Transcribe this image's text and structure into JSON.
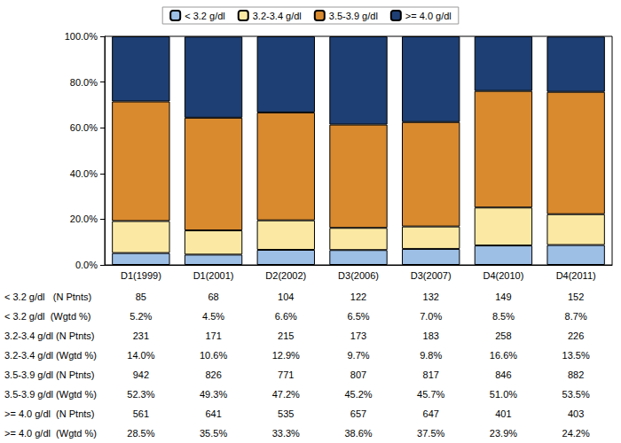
{
  "chart_data": {
    "type": "bar",
    "stacked": true,
    "grid": false,
    "legend": "top",
    "categories": [
      "D1(1999)",
      "D1(2001)",
      "D2(2002)",
      "D3(2006)",
      "D3(2007)",
      "D4(2010)",
      "D4(2011)"
    ],
    "ylim": [
      0,
      100
    ],
    "yticks": [
      {
        "value": 0,
        "label": "0.0%"
      },
      {
        "value": 20,
        "label": "20.0%"
      },
      {
        "value": 40,
        "label": "40.0%"
      },
      {
        "value": 60,
        "label": "60.0%"
      },
      {
        "value": 80,
        "label": "80.0%"
      },
      {
        "value": 100,
        "label": "100.0%"
      }
    ],
    "series": [
      {
        "name": "< 3.2 g/dl",
        "color": "#9dbfe6",
        "values": [
          5.2,
          4.5,
          6.6,
          6.5,
          7.0,
          8.5,
          8.7
        ],
        "value_labels": [
          "5.2%",
          "4.5%",
          "6.6%",
          "6.5%",
          "7.0%",
          "8.5%",
          "8.7%"
        ],
        "n_patients": [
          85,
          68,
          104,
          122,
          132,
          149,
          152
        ],
        "n_row_label": "< 3.2 g/dl   (N Ptnts)",
        "pct_row_label": "< 3.2 g/dl  (Wgtd %)"
      },
      {
        "name": "3.2-3.4 g/dl",
        "color": "#fbe9a3",
        "values": [
          14.0,
          10.6,
          12.9,
          9.7,
          9.8,
          16.6,
          13.5
        ],
        "value_labels": [
          "14.0%",
          "10.6%",
          "12.9%",
          "9.7%",
          "9.8%",
          "16.6%",
          "13.5%"
        ],
        "n_patients": [
          231,
          171,
          215,
          173,
          183,
          258,
          226
        ],
        "n_row_label": "3.2-3.4 g/dl (N Ptnts)",
        "pct_row_label": "3.2-3.4 g/dl (Wgtd %)"
      },
      {
        "name": "3.5-3.9 g/dl",
        "color": "#d98a2e",
        "values": [
          52.3,
          49.3,
          47.2,
          45.2,
          45.7,
          51.0,
          53.5
        ],
        "value_labels": [
          "52.3%",
          "49.3%",
          "47.2%",
          "45.2%",
          "45.7%",
          "51.0%",
          "53.5%"
        ],
        "n_patients": [
          942,
          826,
          771,
          807,
          817,
          846,
          882
        ],
        "n_row_label": "3.5-3.9 g/dl (N Ptnts)",
        "pct_row_label": "3.5-3.9 g/dl (Wgtd %)"
      },
      {
        "name": ">= 4.0 g/dl",
        "color": "#1e3f73",
        "values": [
          28.5,
          35.5,
          33.3,
          38.6,
          37.5,
          23.9,
          24.2
        ],
        "value_labels": [
          "28.5%",
          "35.5%",
          "33.3%",
          "38.6%",
          "37.5%",
          "23.9%",
          "24.2%"
        ],
        "n_patients": [
          561,
          641,
          535,
          657,
          647,
          401,
          403
        ],
        "n_row_label": ">= 4.0 g/dl  (N Ptnts)",
        "pct_row_label": ">= 4.0 g/dl  (Wgtd %)"
      }
    ]
  }
}
